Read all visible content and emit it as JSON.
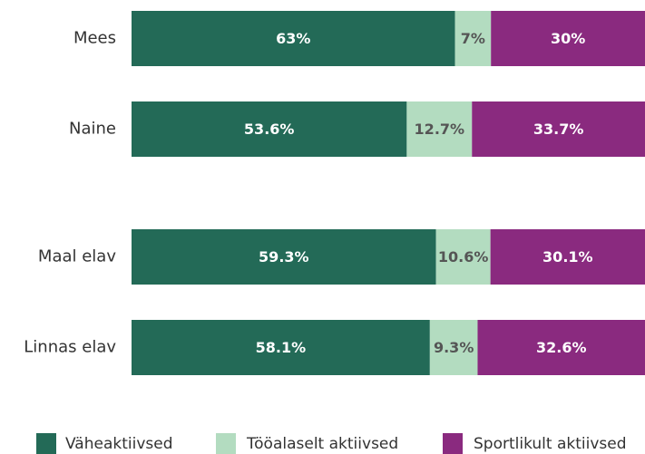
{
  "chart_data": {
    "type": "stacked-bar-horizontal",
    "categories": [
      "Mees",
      "Naine",
      "Maal elav",
      "Linnas elav"
    ],
    "series": [
      {
        "name": "Väheaktiivsed",
        "color": "#236a57",
        "values": [
          63,
          53.6,
          59.3,
          58.1
        ],
        "value_labels": [
          "63%",
          "53.6%",
          "59.3%",
          "58.1%"
        ]
      },
      {
        "name": "Tööalaselt aktiivsed",
        "color": "#b3dcc0",
        "values": [
          7,
          12.7,
          10.6,
          9.3
        ],
        "value_labels": [
          "7%",
          "12.7%",
          "10.6%",
          "9.3%"
        ]
      },
      {
        "name": "Sportlikult aktiivsed",
        "color": "#8a2a7f",
        "values": [
          30,
          33.7,
          30.1,
          32.6
        ],
        "value_labels": [
          "30%",
          "33.7%",
          "30.1%",
          "32.6%"
        ]
      }
    ],
    "xlim": [
      0,
      100
    ],
    "legend": "bottom"
  }
}
